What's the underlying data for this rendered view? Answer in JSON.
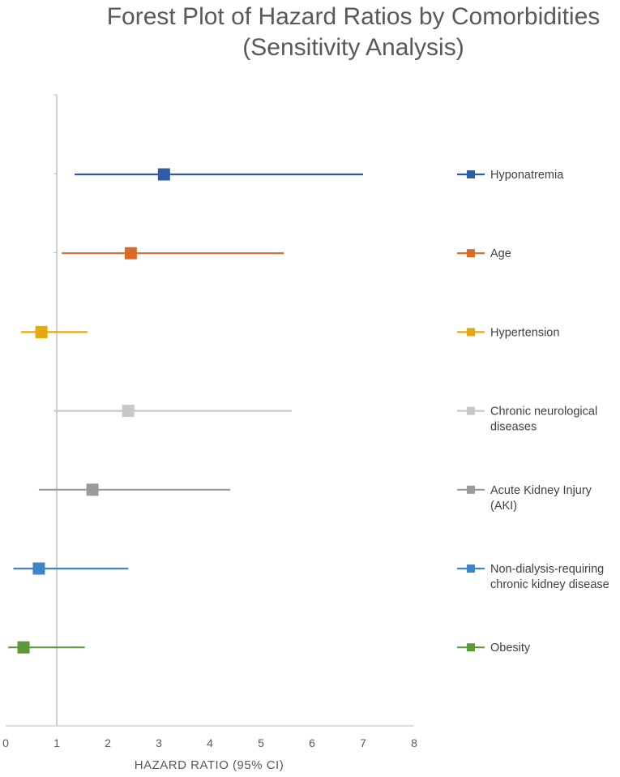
{
  "chart_data": {
    "type": "scatter",
    "title_lines": [
      "Forest Plot of Hazard Ratios by Comorbidities",
      "(Sensitivity Analysis)"
    ],
    "xlabel": "HAZARD RATIO (95% CI)",
    "ylabel": "",
    "xlim": [
      0,
      8
    ],
    "x_ticks": [
      "0",
      "1",
      "2",
      "3",
      "4",
      "5",
      "6",
      "7",
      "8"
    ],
    "reference_line_x": 1,
    "grid": false,
    "legend_position": "right",
    "series": [
      {
        "name": "Hyponatremia",
        "legend_lines": [
          "Hyponatremia"
        ],
        "hr": 3.1,
        "ci_low": 1.35,
        "ci_high": 7.0,
        "color": "#2e5ca8"
      },
      {
        "name": "Age",
        "legend_lines": [
          "Age"
        ],
        "hr": 2.45,
        "ci_low": 1.1,
        "ci_high": 5.45,
        "color": "#d96a2a"
      },
      {
        "name": "Hypertension",
        "legend_lines": [
          "Hypertension"
        ],
        "hr": 0.7,
        "ci_low": 0.3,
        "ci_high": 1.6,
        "color": "#e5a80f"
      },
      {
        "name": "Chronic neurological diseases",
        "legend_lines": [
          "Chronic neurological",
          "diseases"
        ],
        "hr": 2.4,
        "ci_low": 0.95,
        "ci_high": 5.6,
        "color": "#c8c8c8"
      },
      {
        "name": "Acute Kidney Injury (AKI)",
        "legend_lines": [
          "Acute Kidney Injury",
          "(AKI)"
        ],
        "hr": 1.7,
        "ci_low": 0.65,
        "ci_high": 4.4,
        "color": "#9b9b9b"
      },
      {
        "name": "Non-dialysis-requiring chronic kidney disease",
        "legend_lines": [
          "Non-dialysis-requiring",
          "chronic kidney disease"
        ],
        "hr": 0.65,
        "ci_low": 0.15,
        "ci_high": 2.4,
        "color": "#3d85c6"
      },
      {
        "name": "Obesity",
        "legend_lines": [
          "Obesity"
        ],
        "hr": 0.35,
        "ci_low": 0.05,
        "ci_high": 1.55,
        "color": "#5a9a3a"
      }
    ]
  }
}
